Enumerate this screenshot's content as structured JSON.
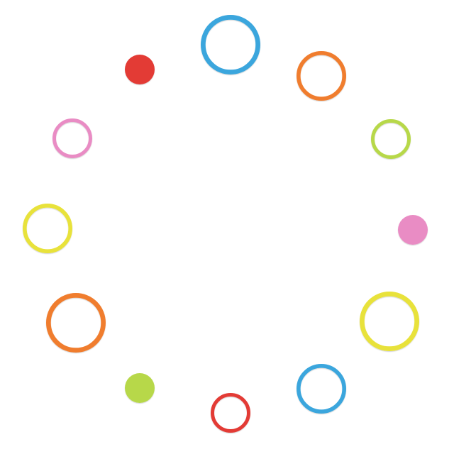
{
  "background": "#ffffff",
  "palette": {
    "blue": "#3aa6dd",
    "orange": "#f07d2e",
    "lime": "#b7d84a",
    "pink": "#e98cc4",
    "yellow": "#e8e23a",
    "red": "#e33a36"
  },
  "items": [
    {
      "id": "top",
      "shape": "ring",
      "color": "blue"
    },
    {
      "id": "upper-right",
      "shape": "ring",
      "color": "orange"
    },
    {
      "id": "right-upper",
      "shape": "ring",
      "color": "lime"
    },
    {
      "id": "right",
      "shape": "dot",
      "color": "pink"
    },
    {
      "id": "right-lower",
      "shape": "ring",
      "color": "yellow"
    },
    {
      "id": "lower-right",
      "shape": "ring",
      "color": "blue"
    },
    {
      "id": "bottom",
      "shape": "ring",
      "color": "red"
    },
    {
      "id": "lower-left",
      "shape": "dot",
      "color": "lime"
    },
    {
      "id": "left-lower",
      "shape": "ring",
      "color": "orange"
    },
    {
      "id": "left",
      "shape": "ring",
      "color": "yellow"
    },
    {
      "id": "left-upper",
      "shape": "ring",
      "color": "pink"
    },
    {
      "id": "upper-left",
      "shape": "dot",
      "color": "red"
    }
  ]
}
